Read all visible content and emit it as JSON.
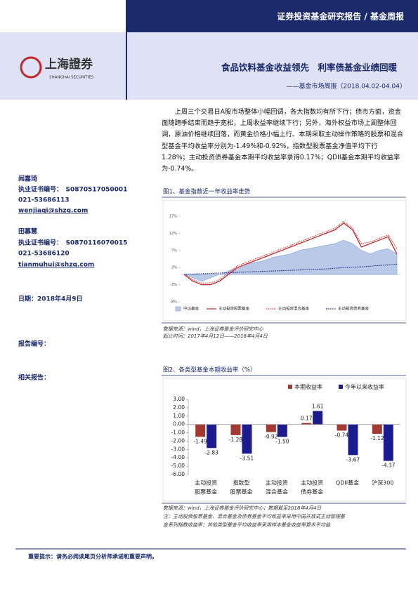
{
  "header": {
    "report_type": "证券投资基金研究报告 / 基金周报",
    "logo_cn": "上海證券",
    "logo_en": "SHANGHAI SECURITIES",
    "title": "食品饮料基金收益领先　利率债基金业绩回暖",
    "subtitle": "——基金市场周报（2018.04.02-04.04）"
  },
  "summary": "上周三个交易日A股市场整体小幅回调，各大指数均有所下行；债市方面，资金面随跨季结束而趋于宽松，上周收益率继续下行；另外，海外权益市场上周整体回调，原油价格继续回落，而黄金价格小幅上行。本期采取主动操作策略的股票和混合型基金平均收益率分别为-1.49%和-0.92%，指数型股票基金净值平均下行1.28%；主动投资债券基金本期平均收益率录得0.17%；QDII基金本期平均收益率为-0.74%。",
  "analysts": [
    {
      "name": "闻嘉琦",
      "cert": "执业证书编号：　S0870517050001",
      "phone": "021-53686113",
      "email": "wenjiaqi@shzq.com"
    },
    {
      "name": "田慕慧",
      "cert": "执业证书编号：　S0870116070015",
      "phone": "021-53686120",
      "email": "tianmuhui@shzq.com"
    }
  ],
  "date": "日期：2018年4月9日",
  "report_no": "报告编号：",
  "related": "相关报告：",
  "figure1": {
    "caption": "图1、基金指数近一年收益率走势",
    "source": "数据来源：wind，上海证券基金评价研究中心",
    "period": "起止时间：2017年4月12日——2018年4月4日",
    "chart_data": {
      "type": "line",
      "ylim": [
        -8,
        17
      ],
      "yticks": [
        {
          "value": -8,
          "label": "-8%"
        },
        {
          "value": -3,
          "label": "-3%"
        },
        {
          "value": 2,
          "label": "2%"
        },
        {
          "value": 7,
          "label": "7%"
        },
        {
          "value": 12,
          "label": "12%"
        },
        {
          "value": 17,
          "label": "17%"
        }
      ],
      "series": [
        {
          "name": "中证基金",
          "color": "#b9c9e8",
          "style": "area",
          "values": [
            0,
            -1,
            -2,
            -1,
            0,
            1,
            2,
            3,
            3.5,
            4,
            5,
            5.5,
            6,
            7,
            7.5,
            8,
            8.5,
            9,
            10,
            9,
            7,
            6,
            7,
            7.5,
            6
          ]
        },
        {
          "name": "主动投资股票基金",
          "color": "#c0282a",
          "style": "solid",
          "values": [
            0,
            -2,
            -3,
            -3,
            -2,
            0,
            2,
            3,
            4,
            5,
            6,
            7,
            8,
            9,
            10,
            11,
            12,
            13,
            15,
            13,
            8,
            9,
            10,
            11,
            6
          ]
        },
        {
          "name": "主动投资混合基金",
          "color": "#e04040",
          "style": "dotted",
          "values": [
            0,
            -1.5,
            -2.5,
            -2.5,
            -1.5,
            0.5,
            2.5,
            3.5,
            4.5,
            5.5,
            6.5,
            7.5,
            8.5,
            9.5,
            10.5,
            11.5,
            12.5,
            13.5,
            15.5,
            13.5,
            9,
            9.5,
            10.5,
            11.5,
            7.5
          ]
        },
        {
          "name": "主动投资债券基金",
          "color": "#1a237e",
          "style": "dotted",
          "values": [
            0,
            0.1,
            0.2,
            0.3,
            0.4,
            0.5,
            0.6,
            0.7,
            0.8,
            0.9,
            1,
            1.1,
            1.2,
            1.3,
            1.4,
            1.5,
            1.6,
            1.8,
            2,
            2.1,
            2.2,
            2.4,
            2.6,
            2.8,
            3
          ]
        }
      ]
    }
  },
  "figure2": {
    "caption": "图2、各类型基金本期收益率（%）",
    "source": "数据来源：wind，上海证券基金评价研究中心；数据截至2018年4月4日",
    "note1": "注：主动投资股票基金、混合基金及债券基金平均收益率采用中国开放式主动管理基",
    "note2": "金系列指数收益率；其他类型基金平均收益率采用样本基金收益率算术平均值",
    "chart_data": {
      "type": "bar",
      "categories": [
        [
          "主动投资",
          "股票基金"
        ],
        [
          "指数型",
          "股票基金"
        ],
        [
          "主动投资",
          "混合基金"
        ],
        [
          "主动投资",
          "债券基金"
        ],
        [
          "QDII基金"
        ],
        [
          "沪深300"
        ]
      ],
      "ylim": [
        -6,
        3
      ],
      "yticks": [
        {
          "value": -6,
          "label": "-6.00"
        },
        {
          "value": -5,
          "label": "-5.00"
        },
        {
          "value": -4,
          "label": "-4.00"
        },
        {
          "value": -3,
          "label": "-3.00"
        },
        {
          "value": -2,
          "label": "-2.00"
        },
        {
          "value": -1,
          "label": "-1.00"
        },
        {
          "value": 0,
          "label": "0.00"
        },
        {
          "value": 1,
          "label": "1.00"
        },
        {
          "value": 2,
          "label": "2.00"
        },
        {
          "value": 3,
          "label": "3.00"
        }
      ],
      "series": [
        {
          "name": "本期收益率",
          "color": "#a33a32",
          "values": [
            -1.49,
            -1.28,
            -0.92,
            0.17,
            -0.74,
            -1.12
          ],
          "value_labels": [
            "-1.49",
            "-1.28",
            "-0.92",
            "0.17",
            "-0.74",
            "-1.12"
          ]
        },
        {
          "name": "今年以来收益率",
          "color": "#1c1c8e",
          "values": [
            -2.83,
            -3.51,
            -1.5,
            1.61,
            -3.67,
            -4.37
          ],
          "value_labels": [
            "-2.83",
            "-3.51",
            "-1.50",
            "1.61",
            "-3.67",
            "-4.37"
          ]
        }
      ]
    }
  },
  "footer": "重要提示：请务必阅读尾页分析师承诺和重要声明。"
}
